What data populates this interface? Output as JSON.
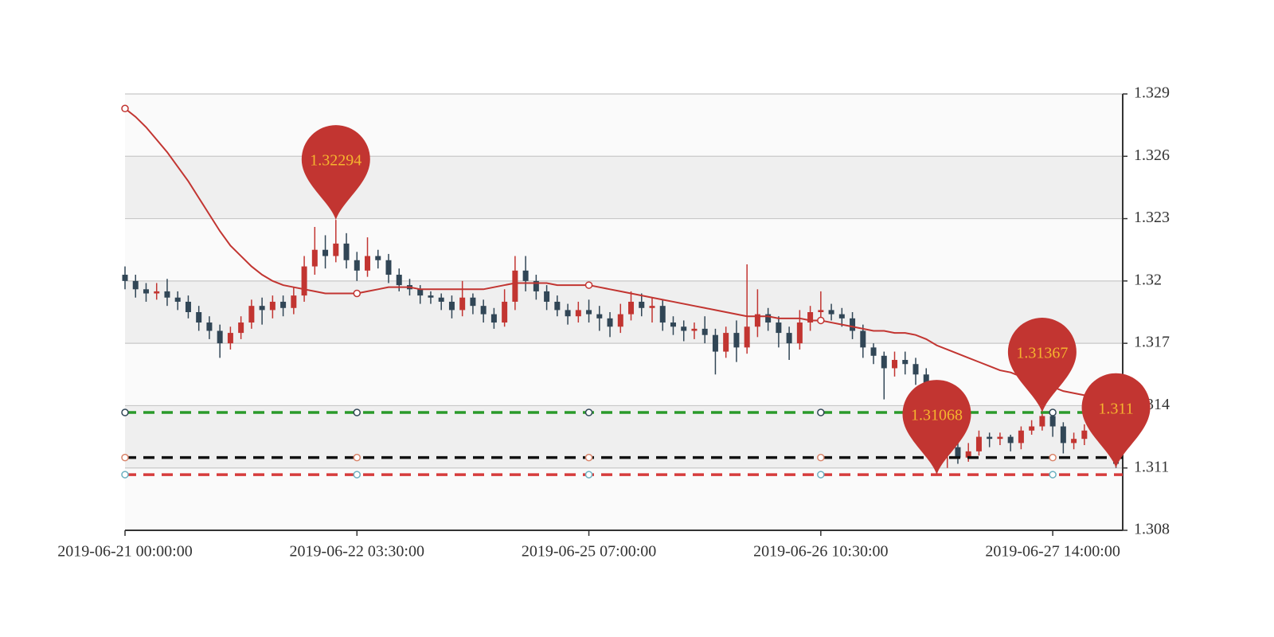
{
  "chart_data": {
    "type": "candlestick",
    "categories": [
      "2019-06-21 00:00:00",
      null,
      null,
      null,
      null,
      null,
      null,
      null,
      null,
      null,
      null,
      null,
      null,
      null,
      null,
      null,
      null,
      null,
      null,
      null,
      null,
      null,
      "2019-06-22 03:30:00",
      null,
      null,
      null,
      null,
      null,
      null,
      null,
      null,
      null,
      null,
      null,
      null,
      null,
      null,
      null,
      null,
      null,
      null,
      null,
      null,
      null,
      "2019-06-25 07:00:00",
      null,
      null,
      null,
      null,
      null,
      null,
      null,
      null,
      null,
      null,
      null,
      null,
      null,
      null,
      null,
      null,
      null,
      null,
      null,
      null,
      null,
      "2019-06-26 10:30:00",
      null,
      null,
      null,
      null,
      null,
      null,
      null,
      null,
      null,
      null,
      null,
      null,
      null,
      null,
      null,
      null,
      null,
      null,
      null,
      null,
      null,
      "2019-06-27 14:00:00",
      null,
      null,
      null,
      null,
      null,
      null
    ],
    "candles": [
      [
        1.3203,
        1.32,
        1.3196,
        1.3207
      ],
      [
        1.32,
        1.3196,
        1.3192,
        1.3203
      ],
      [
        1.3196,
        1.3194,
        1.319,
        1.3199
      ],
      [
        1.3194,
        1.3195,
        1.3191,
        1.3199
      ],
      [
        1.3195,
        1.3192,
        1.3188,
        1.3201
      ],
      [
        1.3192,
        1.319,
        1.3186,
        1.3195
      ],
      [
        1.319,
        1.3185,
        1.3182,
        1.3193
      ],
      [
        1.3185,
        1.318,
        1.3176,
        1.3188
      ],
      [
        1.318,
        1.3176,
        1.3172,
        1.3183
      ],
      [
        1.3176,
        1.317,
        1.3163,
        1.3179
      ],
      [
        1.317,
        1.3175,
        1.3167,
        1.3178
      ],
      [
        1.3175,
        1.318,
        1.3172,
        1.3183
      ],
      [
        1.318,
        1.3188,
        1.3177,
        1.3191
      ],
      [
        1.3188,
        1.3186,
        1.3179,
        1.3192
      ],
      [
        1.3186,
        1.319,
        1.3182,
        1.3193
      ],
      [
        1.319,
        1.3187,
        1.3183,
        1.3193
      ],
      [
        1.3187,
        1.3193,
        1.3184,
        1.3197
      ],
      [
        1.3193,
        1.3207,
        1.319,
        1.3212
      ],
      [
        1.3207,
        1.3215,
        1.3203,
        1.3226
      ],
      [
        1.3215,
        1.3212,
        1.3206,
        1.3222
      ],
      [
        1.3212,
        1.3218,
        1.3209,
        1.32294
      ],
      [
        1.3218,
        1.321,
        1.3206,
        1.3223
      ],
      [
        1.321,
        1.3205,
        1.32,
        1.3214
      ],
      [
        1.3205,
        1.3212,
        1.3202,
        1.3221
      ],
      [
        1.3212,
        1.321,
        1.3206,
        1.3215
      ],
      [
        1.321,
        1.3203,
        1.3199,
        1.3213
      ],
      [
        1.3203,
        1.3198,
        1.3195,
        1.3206
      ],
      [
        1.3198,
        1.3196,
        1.3193,
        1.3201
      ],
      [
        1.3196,
        1.3193,
        1.3189,
        1.3198
      ],
      [
        1.3193,
        1.3192,
        1.3189,
        1.3195
      ],
      [
        1.3192,
        1.319,
        1.3186,
        1.3194
      ],
      [
        1.319,
        1.3186,
        1.3182,
        1.3193
      ],
      [
        1.3186,
        1.3192,
        1.3183,
        1.32
      ],
      [
        1.3192,
        1.3188,
        1.3184,
        1.3194
      ],
      [
        1.3188,
        1.3184,
        1.318,
        1.3191
      ],
      [
        1.3184,
        1.318,
        1.3177,
        1.3187
      ],
      [
        1.318,
        1.319,
        1.3178,
        1.3196
      ],
      [
        1.319,
        1.3205,
        1.3186,
        1.3212
      ],
      [
        1.3205,
        1.32,
        1.3195,
        1.3212
      ],
      [
        1.32,
        1.3195,
        1.3191,
        1.3203
      ],
      [
        1.3195,
        1.319,
        1.3186,
        1.3198
      ],
      [
        1.319,
        1.3186,
        1.3183,
        1.3193
      ],
      [
        1.3186,
        1.3183,
        1.3179,
        1.3189
      ],
      [
        1.3183,
        1.3186,
        1.318,
        1.319
      ],
      [
        1.3186,
        1.3184,
        1.318,
        1.3191
      ],
      [
        1.3184,
        1.3182,
        1.3176,
        1.3188
      ],
      [
        1.3182,
        1.3178,
        1.3173,
        1.3185
      ],
      [
        1.3178,
        1.3184,
        1.3175,
        1.3189
      ],
      [
        1.3184,
        1.319,
        1.3181,
        1.3195
      ],
      [
        1.319,
        1.3187,
        1.3183,
        1.3194
      ],
      [
        1.3187,
        1.3188,
        1.318,
        1.3192
      ],
      [
        1.3188,
        1.318,
        1.3176,
        1.3191
      ],
      [
        1.318,
        1.3178,
        1.3174,
        1.3183
      ],
      [
        1.3178,
        1.3176,
        1.3171,
        1.3181
      ],
      [
        1.3176,
        1.3177,
        1.3172,
        1.318
      ],
      [
        1.3177,
        1.3174,
        1.317,
        1.3183
      ],
      [
        1.3174,
        1.3166,
        1.3155,
        1.3177
      ],
      [
        1.3166,
        1.3175,
        1.3163,
        1.3178
      ],
      [
        1.3175,
        1.3168,
        1.3161,
        1.3181
      ],
      [
        1.3168,
        1.3178,
        1.3165,
        1.3208
      ],
      [
        1.3178,
        1.3184,
        1.3173,
        1.3196
      ],
      [
        1.3184,
        1.318,
        1.3176,
        1.3187
      ],
      [
        1.318,
        1.3175,
        1.3168,
        1.3183
      ],
      [
        1.3175,
        1.317,
        1.3162,
        1.3178
      ],
      [
        1.317,
        1.318,
        1.3167,
        1.3186
      ],
      [
        1.318,
        1.3185,
        1.3176,
        1.3188
      ],
      [
        1.3185,
        1.3186,
        1.318,
        1.3195
      ],
      [
        1.3186,
        1.3184,
        1.3181,
        1.3189
      ],
      [
        1.3184,
        1.3182,
        1.3178,
        1.3187
      ],
      [
        1.3182,
        1.3176,
        1.3172,
        1.3185
      ],
      [
        1.3176,
        1.3168,
        1.3163,
        1.3179
      ],
      [
        1.3168,
        1.3164,
        1.316,
        1.317
      ],
      [
        1.3164,
        1.3158,
        1.3143,
        1.3166
      ],
      [
        1.3158,
        1.3162,
        1.3154,
        1.3166
      ],
      [
        1.3162,
        1.316,
        1.3155,
        1.3166
      ],
      [
        1.316,
        1.3155,
        1.315,
        1.3163
      ],
      [
        1.3155,
        1.314,
        1.3136,
        1.3158
      ],
      [
        1.314,
        1.3118,
        1.31068,
        1.3142
      ],
      [
        1.3118,
        1.312,
        1.311,
        1.3126
      ],
      [
        1.312,
        1.3115,
        1.3112,
        1.3125
      ],
      [
        1.3115,
        1.3118,
        1.3113,
        1.3122
      ],
      [
        1.3118,
        1.3125,
        1.3116,
        1.3128
      ],
      [
        1.3125,
        1.3124,
        1.312,
        1.3127
      ],
      [
        1.3124,
        1.3125,
        1.3121,
        1.3127
      ],
      [
        1.3125,
        1.3122,
        1.3118,
        1.3126
      ],
      [
        1.3122,
        1.3128,
        1.3119,
        1.313
      ],
      [
        1.3128,
        1.313,
        1.3126,
        1.3133
      ],
      [
        1.313,
        1.3135,
        1.3128,
        1.31367
      ],
      [
        1.3135,
        1.313,
        1.3125,
        1.3136
      ],
      [
        1.313,
        1.3122,
        1.3117,
        1.3132
      ],
      [
        1.3122,
        1.3124,
        1.3119,
        1.3127
      ],
      [
        1.3124,
        1.3128,
        1.3121,
        1.3131
      ],
      [
        1.3128,
        1.3132,
        1.3125,
        1.3135
      ],
      [
        1.3132,
        1.3125,
        1.312,
        1.3134
      ],
      [
        1.3125,
        1.3112,
        1.311,
        1.3127
      ]
    ],
    "up_color": "#c23531",
    "down_color": "#314656",
    "series": [
      {
        "color": "#c23531",
        "values": [
          1.3283,
          1.3279,
          1.3274,
          1.3268,
          1.3262,
          1.3255,
          1.3248,
          1.324,
          1.3232,
          1.3224,
          1.3217,
          1.3212,
          1.3207,
          1.3203,
          1.32,
          1.3198,
          1.3197,
          1.3196,
          1.3195,
          1.3194,
          1.3194,
          1.3194,
          1.3194,
          1.3195,
          1.3196,
          1.3197,
          1.3197,
          1.3197,
          1.3196,
          1.3196,
          1.3196,
          1.3196,
          1.3196,
          1.3196,
          1.3196,
          1.3197,
          1.3198,
          1.3199,
          1.3199,
          1.3199,
          1.3199,
          1.3198,
          1.3198,
          1.3198,
          1.3198,
          1.3197,
          1.3196,
          1.3195,
          1.3194,
          1.3193,
          1.3192,
          1.3191,
          1.319,
          1.3189,
          1.3188,
          1.3187,
          1.3186,
          1.3185,
          1.3184,
          1.3183,
          1.3183,
          1.3183,
          1.3182,
          1.3182,
          1.3182,
          1.3181,
          1.3181,
          1.318,
          1.3179,
          1.3178,
          1.3177,
          1.3176,
          1.3176,
          1.3175,
          1.3175,
          1.3174,
          1.3172,
          1.3169,
          1.3167,
          1.3165,
          1.3163,
          1.3161,
          1.3159,
          1.3157,
          1.3156,
          1.3154,
          1.3152,
          1.3151,
          1.3149,
          1.3147,
          1.3146,
          1.3145,
          1.3143,
          1.3142,
          1.3141
        ]
      }
    ],
    "ylim": [
      1.308,
      1.329
    ],
    "yticks": [
      1.308,
      1.311,
      1.314,
      1.317,
      1.32,
      1.323,
      1.326,
      1.329
    ],
    "grid": true,
    "split_area": true,
    "mark_lines": [
      {
        "value": 1.31367,
        "color": "#2a9a2a"
      },
      {
        "value": 1.3115,
        "color": "#111111"
      },
      {
        "value": 1.31068,
        "color": "#d63c3c"
      }
    ],
    "mark_points": [
      {
        "index": 20,
        "value": 1.32294
      },
      {
        "index": 77,
        "value": 1.31068
      },
      {
        "index": 87,
        "value": 1.31367
      },
      {
        "index": 94,
        "value": 1.311
      }
    ],
    "pin_color": "#c23531",
    "pin_text_color": "#f5b52e"
  }
}
